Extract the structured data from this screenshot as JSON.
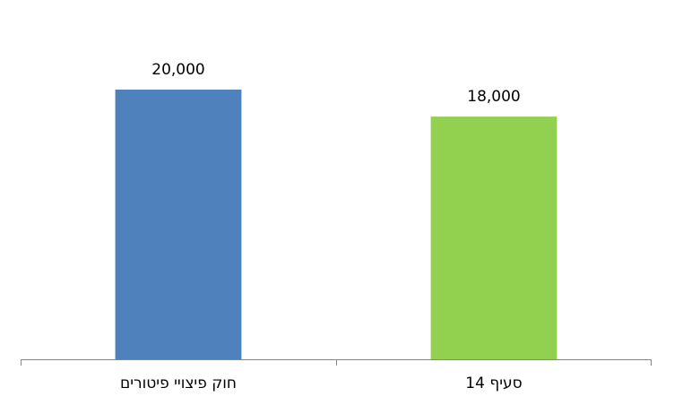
{
  "chart_data": {
    "type": "bar",
    "categories": [
      "חוק פיצויי פיטורים",
      "סעיף 14"
    ],
    "values": [
      20000,
      18000
    ],
    "value_labels": [
      "20,000",
      "18,000"
    ],
    "colors": [
      "#4f81bd",
      "#92d050"
    ],
    "ylim": [
      0,
      20000
    ]
  }
}
